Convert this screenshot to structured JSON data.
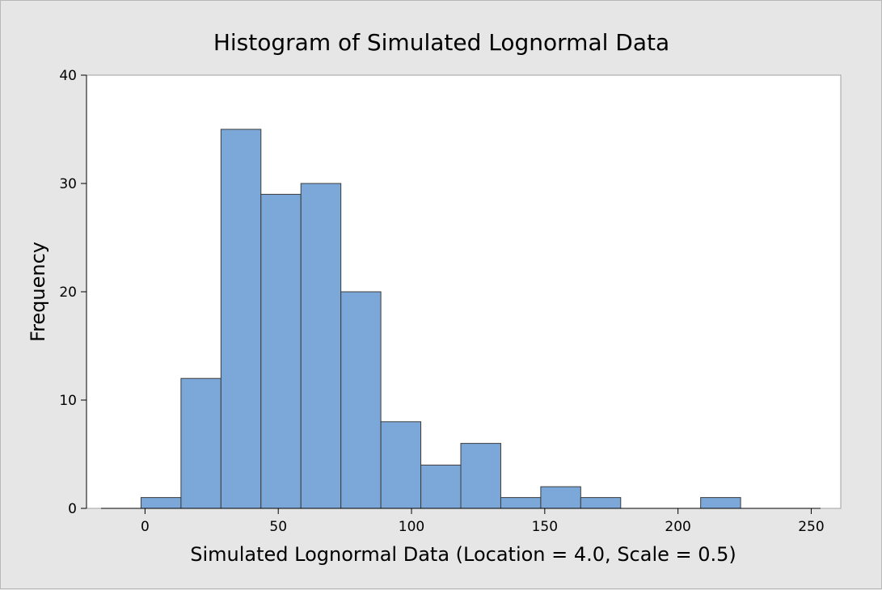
{
  "chart_data": {
    "type": "bar",
    "title": "Histogram of Simulated Lognormal Data",
    "xlabel": "Simulated Lognormal Data (Location = 4.0, Scale = 0.5)",
    "ylabel": "Frequency",
    "xlim": [
      -16.5,
      253.5
    ],
    "ylim": [
      0,
      40
    ],
    "x_ticks": [
      0,
      50,
      100,
      150,
      200,
      250
    ],
    "y_ticks": [
      0,
      10,
      20,
      30,
      40
    ],
    "bin_edges": [
      -16.5,
      -1.5,
      13.5,
      28.5,
      43.5,
      58.5,
      73.5,
      88.5,
      103.5,
      118.5,
      133.5,
      148.5,
      163.5,
      178.5,
      193.5,
      208.5,
      223.5,
      238.5,
      253.5
    ],
    "values": [
      0,
      1,
      12,
      35,
      29,
      30,
      20,
      8,
      4,
      6,
      1,
      2,
      1,
      0,
      0,
      1,
      0,
      0
    ],
    "grid": false,
    "legend": "none",
    "bar_color": "#7ba7d9"
  }
}
